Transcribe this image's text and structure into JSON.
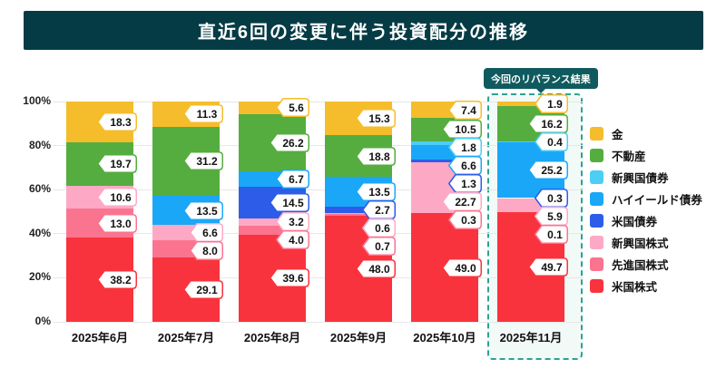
{
  "title": "直近6回の変更に伴う投資配分の推移",
  "highlight_badge": "今回のリバランス結果",
  "colors": {
    "title_bar_bg": "#053B44",
    "badge_bg": "#0F5A5E",
    "highlight_border": "#2CA295",
    "highlight_bg": "#F2FAF7",
    "grid": "#E7E7E7"
  },
  "legend": [
    {
      "label": "金",
      "color": "#F5BD2B"
    },
    {
      "label": "不動産",
      "color": "#55AD3F"
    },
    {
      "label": "新興国債券",
      "color": "#4CCEF5"
    },
    {
      "label": "ハイイールド債券",
      "color": "#1BA7F8"
    },
    {
      "label": "米国債券",
      "color": "#2D5DE8"
    },
    {
      "label": "新興国株式",
      "color": "#FDA9C5"
    },
    {
      "label": "先進国株式",
      "color": "#FA7490"
    },
    {
      "label": "米国株式",
      "color": "#F9333D"
    }
  ],
  "chart_data": {
    "type": "bar",
    "stacked": true,
    "title": "直近6回の変更に伴う投資配分の推移",
    "categories": [
      "2025年6月",
      "2025年7月",
      "2025年8月",
      "2025年9月",
      "2025年10月",
      "2025年11月"
    ],
    "series": [
      {
        "name": "米国株式",
        "color": "#F9333D",
        "values": [
          38.2,
          29.1,
          39.6,
          48.0,
          49.0,
          49.7
        ]
      },
      {
        "name": "先進国株式",
        "color": "#FA7490",
        "values": [
          13.0,
          8.0,
          4.0,
          0.7,
          0.3,
          0.1
        ]
      },
      {
        "name": "新興国株式",
        "color": "#FDA9C5",
        "values": [
          10.6,
          6.6,
          3.2,
          0.6,
          22.7,
          5.9
        ]
      },
      {
        "name": "米国債券",
        "color": "#2D5DE8",
        "values": [
          0,
          0,
          14.5,
          2.7,
          1.3,
          0.3
        ]
      },
      {
        "name": "ハイイールド債券",
        "color": "#1BA7F8",
        "values": [
          0,
          13.5,
          6.7,
          13.5,
          6.6,
          25.2
        ]
      },
      {
        "name": "新興国債券",
        "color": "#4CCEF5",
        "values": [
          0,
          0,
          0,
          0,
          1.8,
          0.4
        ]
      },
      {
        "name": "不動産",
        "color": "#55AD3F",
        "values": [
          19.7,
          31.2,
          26.2,
          18.8,
          10.5,
          16.2
        ]
      },
      {
        "name": "金",
        "color": "#F5BD2B",
        "values": [
          18.3,
          11.3,
          5.6,
          15.3,
          7.4,
          1.9
        ]
      }
    ],
    "y_ticks": [
      "0%",
      "20%",
      "40%",
      "60%",
      "80%",
      "100%"
    ],
    "ylim": [
      0,
      100
    ],
    "unit": "%",
    "grid": true,
    "legend_position": "right",
    "highlight_category": "2025年11月",
    "highlight_note": "今回のリバランス結果"
  }
}
